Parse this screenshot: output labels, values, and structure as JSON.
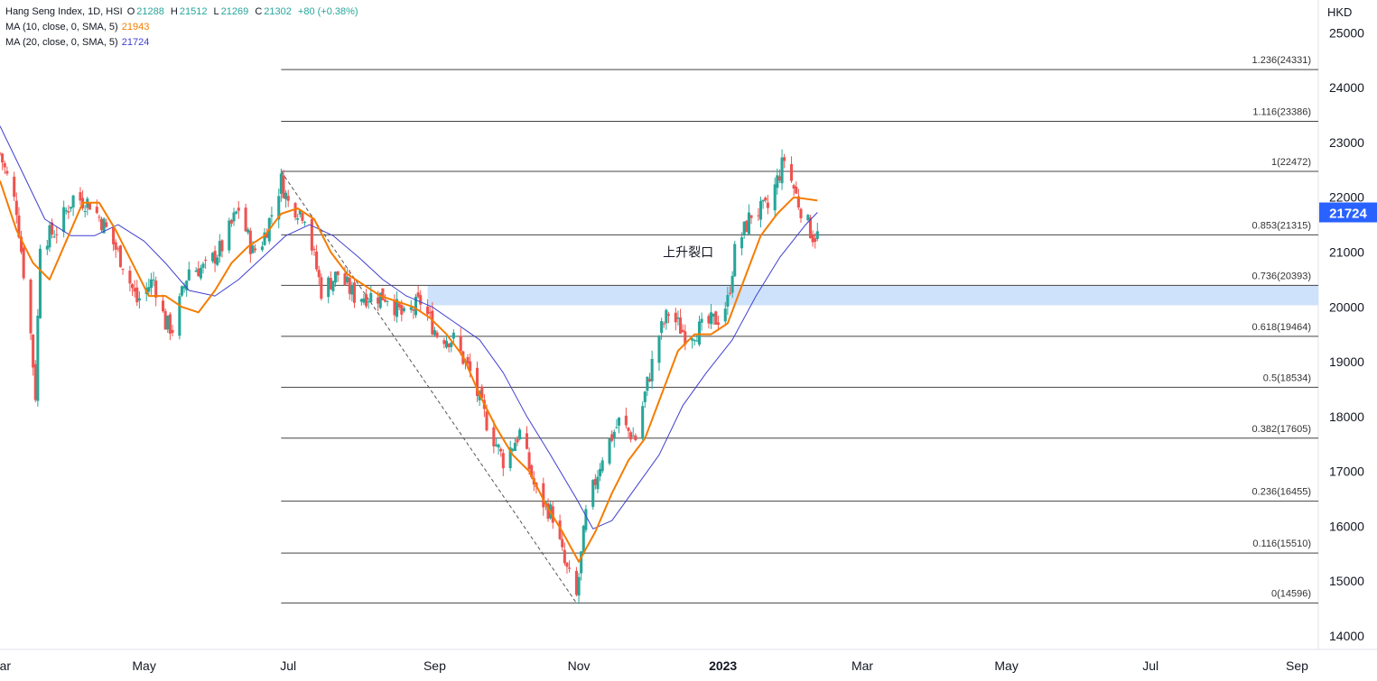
{
  "legend": {
    "symbol": "Hang Seng Index, 1D, HSI",
    "open_label": "O",
    "open": "21288",
    "high_label": "H",
    "high": "21512",
    "low_label": "L",
    "low": "21269",
    "close_label": "C",
    "close": "21302",
    "change": "+80 (+0.38%)",
    "ma10_label": "MA (10, close, 0, SMA, 5)",
    "ma10_value": "21943",
    "ma20_label": "MA (20, close, 0, SMA, 5)",
    "ma20_value": "21724"
  },
  "currency": "HKD",
  "colors": {
    "up": "#26a69a",
    "down": "#ef5350",
    "ma10": "#f57c00",
    "ma20": "#3f3fd1",
    "gap_zone": "#cfe2fb",
    "fib_line": "#444444",
    "price_tag": "#2962ff"
  },
  "chart_data": {
    "type": "candlestick",
    "title": "Hang Seng Index, 1D, HSI",
    "y_axis": {
      "ticks": [
        14000,
        15000,
        16000,
        17000,
        18000,
        19000,
        20000,
        21000,
        22000,
        23000,
        24000,
        25000
      ],
      "range": [
        13750,
        25600
      ]
    },
    "x_axis": {
      "ticks": [
        "Mar",
        "May",
        "Jul",
        "Sep",
        "Nov",
        "2023",
        "Mar",
        "May",
        "Jul",
        "Sep"
      ],
      "range": [
        "2022-03-01",
        "2023-09-10"
      ]
    },
    "price_tag": 21724,
    "fibonacci": [
      {
        "label": "1.236(24331)",
        "value": 24331
      },
      {
        "label": "1.116(23386)",
        "value": 23386
      },
      {
        "label": "1(22472)",
        "value": 22472
      },
      {
        "label": "0.853(21315)",
        "value": 21315
      },
      {
        "label": "0.736(20393)",
        "value": 20393
      },
      {
        "label": "0.618(19464)",
        "value": 19464
      },
      {
        "label": "0.5(18534)",
        "value": 18534
      },
      {
        "label": "0.382(17605)",
        "value": 17605
      },
      {
        "label": "0.236(16455)",
        "value": 16455
      },
      {
        "label": "0.116(15510)",
        "value": 15510
      },
      {
        "label": "0(14596)",
        "value": 14596
      }
    ],
    "fib_start": "2022-06-28",
    "trend_line": {
      "from": [
        "2022-06-28",
        22472
      ],
      "to": [
        "2022-10-31",
        14596
      ]
    },
    "gap_zone": {
      "label": "上升裂口",
      "from_date": "2022-08-29",
      "top": 20393,
      "bottom": 20030
    },
    "close_series": [
      [
        "2022-03-01",
        22800
      ],
      [
        "2022-03-08",
        21800
      ],
      [
        "2022-03-14",
        19500
      ],
      [
        "2022-03-16",
        18400
      ],
      [
        "2022-03-18",
        21200
      ],
      [
        "2022-03-25",
        21400
      ],
      [
        "2022-04-01",
        22000
      ],
      [
        "2022-04-08",
        21900
      ],
      [
        "2022-04-14",
        21500
      ],
      [
        "2022-04-22",
        20800
      ],
      [
        "2022-04-28",
        20100
      ],
      [
        "2022-05-05",
        20500
      ],
      [
        "2022-05-10",
        19700
      ],
      [
        "2022-05-13",
        19600
      ],
      [
        "2022-05-20",
        20700
      ],
      [
        "2022-05-27",
        20700
      ],
      [
        "2022-06-03",
        21100
      ],
      [
        "2022-06-10",
        21800
      ],
      [
        "2022-06-16",
        21000
      ],
      [
        "2022-06-20",
        21200
      ],
      [
        "2022-06-24",
        21700
      ],
      [
        "2022-06-28",
        22300
      ],
      [
        "2022-07-01",
        21900
      ],
      [
        "2022-07-08",
        21700
      ],
      [
        "2022-07-15",
        20300
      ],
      [
        "2022-07-22",
        20600
      ],
      [
        "2022-07-29",
        20200
      ],
      [
        "2022-08-05",
        20200
      ],
      [
        "2022-08-12",
        20200
      ],
      [
        "2022-08-19",
        19800
      ],
      [
        "2022-08-26",
        20100
      ],
      [
        "2022-09-02",
        19500
      ],
      [
        "2022-09-09",
        19400
      ],
      [
        "2022-09-16",
        18800
      ],
      [
        "2022-09-23",
        17900
      ],
      [
        "2022-09-30",
        17200
      ],
      [
        "2022-10-07",
        17700
      ],
      [
        "2022-10-14",
        16600
      ],
      [
        "2022-10-21",
        16200
      ],
      [
        "2022-10-26",
        15300
      ],
      [
        "2022-10-31",
        14700
      ],
      [
        "2022-11-04",
        16200
      ],
      [
        "2022-11-11",
        17300
      ],
      [
        "2022-11-18",
        17900
      ],
      [
        "2022-11-25",
        17600
      ],
      [
        "2022-11-30",
        18600
      ],
      [
        "2022-12-05",
        19500
      ],
      [
        "2022-12-09",
        19900
      ],
      [
        "2022-12-16",
        19500
      ],
      [
        "2022-12-23",
        19600
      ],
      [
        "2022-12-30",
        19800
      ],
      [
        "2023-01-03",
        20100
      ],
      [
        "2023-01-06",
        21000
      ],
      [
        "2023-01-13",
        21700
      ],
      [
        "2023-01-20",
        21800
      ],
      [
        "2023-01-27",
        22700
      ],
      [
        "2023-02-02",
        21900
      ],
      [
        "2023-02-08",
        21300
      ],
      [
        "2023-02-10",
        21302
      ]
    ],
    "ma10_series": [
      [
        "2022-03-01",
        22300
      ],
      [
        "2022-03-08",
        21400
      ],
      [
        "2022-03-15",
        20800
      ],
      [
        "2022-03-22",
        20500
      ],
      [
        "2022-03-29",
        21200
      ],
      [
        "2022-04-05",
        21900
      ],
      [
        "2022-04-12",
        21900
      ],
      [
        "2022-04-19",
        21400
      ],
      [
        "2022-04-26",
        20800
      ],
      [
        "2022-05-03",
        20200
      ],
      [
        "2022-05-10",
        20200
      ],
      [
        "2022-05-17",
        20000
      ],
      [
        "2022-05-24",
        19900
      ],
      [
        "2022-05-31",
        20300
      ],
      [
        "2022-06-07",
        20800
      ],
      [
        "2022-06-14",
        21100
      ],
      [
        "2022-06-21",
        21300
      ],
      [
        "2022-06-28",
        21700
      ],
      [
        "2022-07-05",
        21800
      ],
      [
        "2022-07-12",
        21600
      ],
      [
        "2022-07-19",
        21000
      ],
      [
        "2022-07-26",
        20600
      ],
      [
        "2022-08-02",
        20400
      ],
      [
        "2022-08-09",
        20200
      ],
      [
        "2022-08-16",
        20100
      ],
      [
        "2022-08-23",
        20000
      ],
      [
        "2022-08-30",
        19800
      ],
      [
        "2022-09-06",
        19500
      ],
      [
        "2022-09-13",
        19100
      ],
      [
        "2022-09-20",
        18400
      ],
      [
        "2022-09-27",
        17800
      ],
      [
        "2022-10-04",
        17300
      ],
      [
        "2022-10-11",
        17000
      ],
      [
        "2022-10-18",
        16400
      ],
      [
        "2022-10-25",
        15900
      ],
      [
        "2022-11-01",
        15350
      ],
      [
        "2022-11-08",
        15900
      ],
      [
        "2022-11-15",
        16600
      ],
      [
        "2022-11-22",
        17200
      ],
      [
        "2022-11-29",
        17600
      ],
      [
        "2022-12-06",
        18400
      ],
      [
        "2022-12-13",
        19200
      ],
      [
        "2022-12-20",
        19500
      ],
      [
        "2022-12-27",
        19500
      ],
      [
        "2023-01-03",
        19700
      ],
      [
        "2023-01-10",
        20500
      ],
      [
        "2023-01-17",
        21300
      ],
      [
        "2023-01-24",
        21700
      ],
      [
        "2023-01-31",
        22000
      ],
      [
        "2023-02-10",
        21943
      ]
    ],
    "ma20_series": [
      [
        "2022-03-01",
        23300
      ],
      [
        "2022-03-10",
        22500
      ],
      [
        "2022-03-20",
        21600
      ],
      [
        "2022-03-31",
        21300
      ],
      [
        "2022-04-10",
        21300
      ],
      [
        "2022-04-20",
        21500
      ],
      [
        "2022-05-01",
        21200
      ],
      [
        "2022-05-10",
        20800
      ],
      [
        "2022-05-20",
        20300
      ],
      [
        "2022-05-31",
        20200
      ],
      [
        "2022-06-10",
        20500
      ],
      [
        "2022-06-20",
        20900
      ],
      [
        "2022-06-30",
        21300
      ],
      [
        "2022-07-10",
        21500
      ],
      [
        "2022-07-20",
        21300
      ],
      [
        "2022-07-31",
        20900
      ],
      [
        "2022-08-10",
        20500
      ],
      [
        "2022-08-20",
        20200
      ],
      [
        "2022-08-31",
        20000
      ],
      [
        "2022-09-10",
        19700
      ],
      [
        "2022-09-20",
        19400
      ],
      [
        "2022-09-30",
        18800
      ],
      [
        "2022-10-10",
        18000
      ],
      [
        "2022-10-20",
        17300
      ],
      [
        "2022-10-31",
        16500
      ],
      [
        "2022-11-07",
        15950
      ],
      [
        "2022-11-15",
        16100
      ],
      [
        "2022-11-25",
        16700
      ],
      [
        "2022-12-05",
        17300
      ],
      [
        "2022-12-15",
        18200
      ],
      [
        "2022-12-25",
        18800
      ],
      [
        "2023-01-05",
        19400
      ],
      [
        "2023-01-15",
        20200
      ],
      [
        "2023-01-25",
        20900
      ],
      [
        "2023-02-05",
        21500
      ],
      [
        "2023-02-10",
        21724
      ]
    ]
  }
}
